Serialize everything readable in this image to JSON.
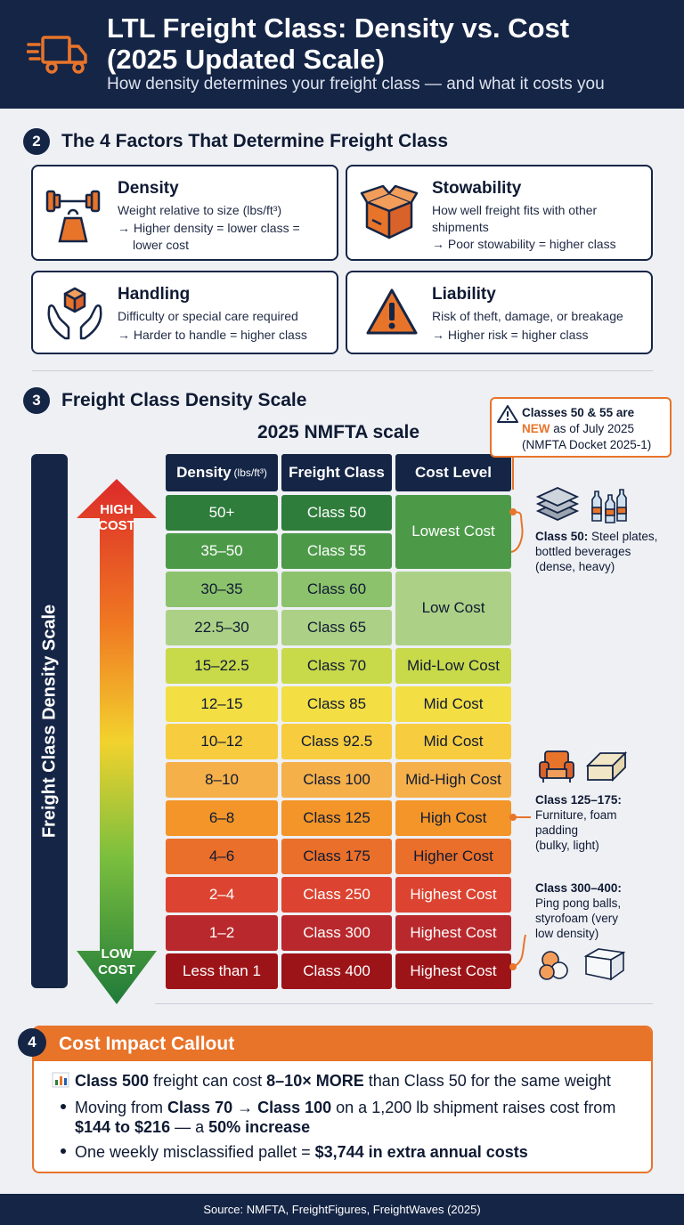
{
  "header": {
    "title_line1": "LTL Freight Class: Density vs. Cost",
    "title_line2": "(2025 Updated Scale)",
    "subtitle": "How density determines your freight class — and what it costs you"
  },
  "section2": {
    "number": "2",
    "title": "The 4 Factors That Determine Freight Class",
    "factors": [
      {
        "title": "Density",
        "icon": "weight-icon",
        "desc": "Weight relative to size (lbs/ft³)",
        "rule_line1": "→ Higher density = lower class =",
        "rule_line2": "lower cost"
      },
      {
        "title": "Stowability",
        "icon": "box-icon",
        "desc_line1": "How well freight fits with other",
        "desc_line2": "shipments",
        "rule": "→ Poor stowability = higher class"
      },
      {
        "title": "Handling",
        "icon": "hands-box-icon",
        "desc": "Difficulty or special care required",
        "rule": "→ Harder to handle = higher class"
      },
      {
        "title": "Liability",
        "icon": "warning-icon",
        "desc": "Risk of theft, damage, or breakage",
        "rule": "→ Higher risk = higher class"
      }
    ]
  },
  "section3": {
    "number": "3",
    "title": "Freight Class Density Scale",
    "vertical_label": "Freight Class Density Scale",
    "arrow_top_line1": "HIGH",
    "arrow_top_line2": "COST",
    "arrow_bottom_line1": "LOW",
    "arrow_bottom_line2": "COST",
    "note": {
      "line1": "Classes 50 & 55 are",
      "new_word": "NEW",
      "line2_rest": " as of July 2025",
      "line3": "(NMFTA Docket 2025-1)"
    },
    "side_notes": {
      "dense_title": "Class 50:",
      "dense_text1": " Steel plates,",
      "dense_text2": "bottled beverages",
      "dense_text3": "(dense, heavy)",
      "bulky_title": "Class 125–175:",
      "bulky_text1": "Furniture, foam",
      "bulky_text2": "padding",
      "bulky_text3": "(bulky, light)",
      "light_title": "Class 300–400:",
      "light_text1": "Ping pong balls,",
      "light_text2": "styrofoam (very",
      "light_text3": "low density)"
    }
  },
  "chart_data": {
    "type": "table",
    "title": "2025 NMFTA scale",
    "columns": [
      "Density",
      "Freight Class",
      "Cost Level"
    ],
    "density_unit": "(lbs/ft³)",
    "rows": [
      {
        "density": "50+",
        "class": "Class 50",
        "cost": "Lowest Cost",
        "color": "#2f7d3b",
        "text": "#ffffff"
      },
      {
        "density": "35–50",
        "class": "Class 55",
        "cost": "Lowest Cost",
        "color": "#4c9a48",
        "text": "#ffffff"
      },
      {
        "density": "30–35",
        "class": "Class 60",
        "cost": "Low Cost",
        "color": "#8cc26c",
        "text": "#0f1a33"
      },
      {
        "density": "22.5–30",
        "class": "Class 65",
        "cost": "Low Cost",
        "color": "#acd186",
        "text": "#0f1a33"
      },
      {
        "density": "15–22.5",
        "class": "Class 70",
        "cost": "Mid-Low Cost",
        "color": "#c8d94a",
        "text": "#0f1a33"
      },
      {
        "density": "12–15",
        "class": "Class 85",
        "cost": "Mid Cost",
        "color": "#f3de44",
        "text": "#0f1a33"
      },
      {
        "density": "10–12",
        "class": "Class 92.5",
        "cost": "Mid Cost",
        "color": "#f7cc3e",
        "text": "#0f1a33"
      },
      {
        "density": "8–10",
        "class": "Class 100",
        "cost": "Mid-High Cost",
        "color": "#f5b04a",
        "text": "#0f1a33"
      },
      {
        "density": "6–8",
        "class": "Class 125",
        "cost": "High Cost",
        "color": "#f39528",
        "text": "#0f1a33"
      },
      {
        "density": "4–6",
        "class": "Class 175",
        "cost": "Higher Cost",
        "color": "#ea6f2a",
        "text": "#0f1a33"
      },
      {
        "density": "2–4",
        "class": "Class 250",
        "cost": "Highest Cost",
        "color": "#dc4330",
        "text": "#ffffff"
      },
      {
        "density": "1–2",
        "class": "Class 300",
        "cost": "Highest Cost",
        "color": "#b9282c",
        "text": "#ffffff"
      },
      {
        "density": "Less than 1",
        "class": "Class 400",
        "cost": "Highest Cost",
        "color": "#9c1418",
        "text": "#ffffff"
      }
    ]
  },
  "section4": {
    "number": "4",
    "title": "Cost Impact Callout",
    "line1_a": "Class 500",
    "line1_b": " freight can cost ",
    "line1_c": "8–10× MORE",
    "line1_d": " than Class 50 for the same weight",
    "line2_a": "Moving from ",
    "line2_b": "Class 70 → Class 100",
    "line2_c": " on a 1,200 lb shipment raises cost from",
    "line2_d": "$144 to $216",
    "line2_e": " — a ",
    "line2_f": "50% increase",
    "line3_a": "One weekly misclassified pallet = ",
    "line3_b": "$3,744 in extra annual costs"
  },
  "footer": {
    "text": "Source: NMFTA, FreightFigures, FreightWaves (2025)"
  },
  "colors": {
    "navy": "#152546",
    "orange": "#e8742a",
    "background": "#eef0f4"
  }
}
